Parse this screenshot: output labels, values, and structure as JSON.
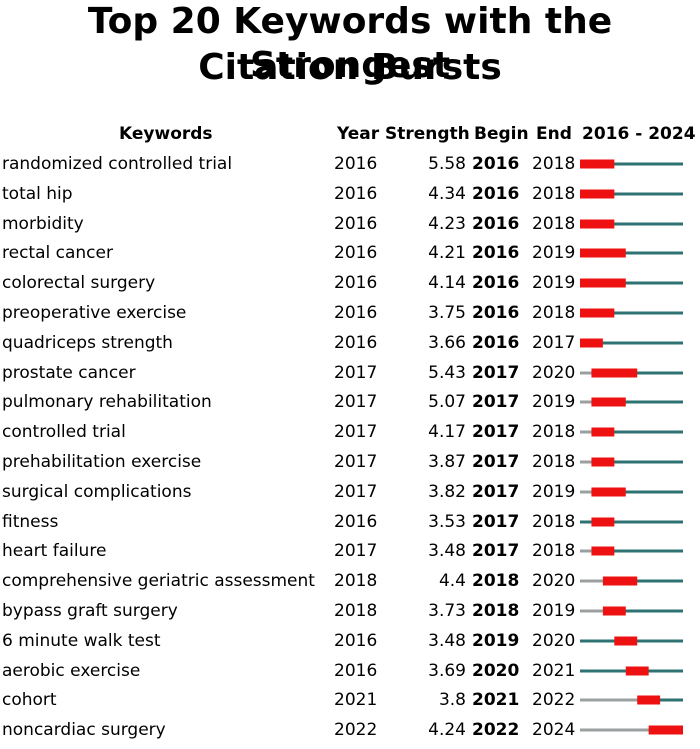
{
  "title_line1": "Top 20 Keywords with the Strongest",
  "title_line2": "Citation Bursts",
  "headers": {
    "keywords": "Keywords",
    "year": "Year",
    "strength": "Strength",
    "begin": "Begin",
    "end": "End",
    "range": "2016 - 2024"
  },
  "colors": {
    "burst": "#ee1111",
    "active": "#2e7272",
    "inactive": "#9aa0a0"
  },
  "chart_data": {
    "type": "table",
    "timeline_start": 2016,
    "timeline_end": 2024,
    "rows": [
      {
        "keyword": "randomized controlled trial",
        "year": "2016",
        "strength": "5.58",
        "begin": "2016",
        "end": "2018"
      },
      {
        "keyword": "total hip",
        "year": "2016",
        "strength": "4.34",
        "begin": "2016",
        "end": "2018"
      },
      {
        "keyword": "morbidity",
        "year": "2016",
        "strength": "4.23",
        "begin": "2016",
        "end": "2018"
      },
      {
        "keyword": "rectal cancer",
        "year": "2016",
        "strength": "4.21",
        "begin": "2016",
        "end": "2019"
      },
      {
        "keyword": "colorectal surgery",
        "year": "2016",
        "strength": "4.14",
        "begin": "2016",
        "end": "2019"
      },
      {
        "keyword": "preoperative exercise",
        "year": "2016",
        "strength": "3.75",
        "begin": "2016",
        "end": "2018"
      },
      {
        "keyword": "quadriceps strength",
        "year": "2016",
        "strength": "3.66",
        "begin": "2016",
        "end": "2017"
      },
      {
        "keyword": "prostate cancer",
        "year": "2017",
        "strength": "5.43",
        "begin": "2017",
        "end": "2020"
      },
      {
        "keyword": "pulmonary rehabilitation",
        "year": "2017",
        "strength": "5.07",
        "begin": "2017",
        "end": "2019"
      },
      {
        "keyword": "controlled trial",
        "year": "2017",
        "strength": "4.17",
        "begin": "2017",
        "end": "2018"
      },
      {
        "keyword": "prehabilitation exercise",
        "year": "2017",
        "strength": "3.87",
        "begin": "2017",
        "end": "2018"
      },
      {
        "keyword": "surgical complications",
        "year": "2017",
        "strength": "3.82",
        "begin": "2017",
        "end": "2019"
      },
      {
        "keyword": "fitness",
        "year": "2016",
        "strength": "3.53",
        "begin": "2017",
        "end": "2018"
      },
      {
        "keyword": "heart failure",
        "year": "2017",
        "strength": "3.48",
        "begin": "2017",
        "end": "2018"
      },
      {
        "keyword": "comprehensive geriatric assessment",
        "year": "2018",
        "strength": "4.4",
        "begin": "2018",
        "end": "2020"
      },
      {
        "keyword": "bypass graft surgery",
        "year": "2018",
        "strength": "3.73",
        "begin": "2018",
        "end": "2019"
      },
      {
        "keyword": "6 minute walk test",
        "year": "2016",
        "strength": "3.48",
        "begin": "2019",
        "end": "2020"
      },
      {
        "keyword": "aerobic exercise",
        "year": "2016",
        "strength": "3.69",
        "begin": "2020",
        "end": "2021"
      },
      {
        "keyword": "cohort",
        "year": "2021",
        "strength": "3.8",
        "begin": "2021",
        "end": "2022"
      },
      {
        "keyword": "noncardiac surgery",
        "year": "2022",
        "strength": "4.24",
        "begin": "2022",
        "end": "2024"
      }
    ]
  }
}
